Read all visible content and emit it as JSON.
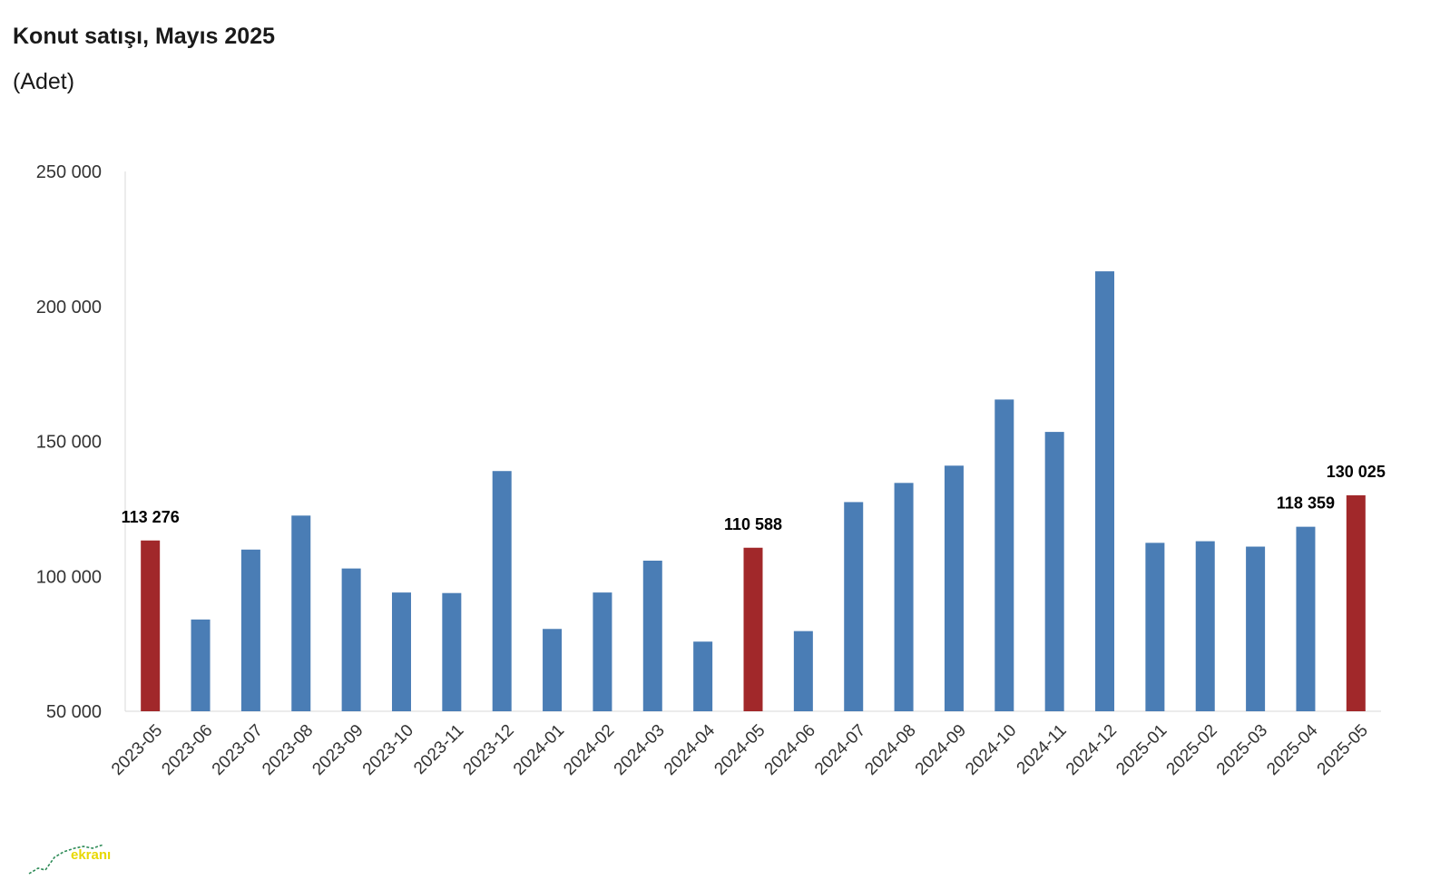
{
  "title": "Konut satışı, Mayıs 2025",
  "subtitle": "(Adet)",
  "logo_text": "ekranı",
  "colors": {
    "regular": "#4a7db5",
    "highlight": "#a1282a",
    "axis": "#d9d9d9",
    "label": "#000000",
    "tick": "#333333"
  },
  "chart_data": {
    "type": "bar",
    "title": "Konut satışı, Mayıs 2025",
    "ylabel": "(Adet)",
    "ylim": [
      50000,
      250000
    ],
    "yticks": [
      50000,
      100000,
      150000,
      200000,
      250000
    ],
    "ytick_labels": [
      "50 000",
      "100 000",
      "150 000",
      "200 000",
      "250 000"
    ],
    "grid": false,
    "categories": [
      "2023-05",
      "2023-06",
      "2023-07",
      "2023-08",
      "2023-09",
      "2023-10",
      "2023-11",
      "2023-12",
      "2024-01",
      "2024-02",
      "2024-03",
      "2024-04",
      "2024-05",
      "2024-06",
      "2024-07",
      "2024-08",
      "2024-09",
      "2024-10",
      "2024-11",
      "2024-12",
      "2025-01",
      "2025-02",
      "2025-03",
      "2025-04",
      "2025-05"
    ],
    "values": [
      113276,
      84000,
      109900,
      122500,
      102900,
      94000,
      93800,
      139000,
      80500,
      94000,
      105800,
      75800,
      110588,
      79700,
      127500,
      134600,
      141000,
      165500,
      153500,
      213000,
      112400,
      113000,
      111000,
      118359,
      130025
    ],
    "highlighted": [
      "2023-05",
      "2024-05",
      "2025-05"
    ],
    "data_labels": [
      {
        "category": "2023-05",
        "text": "113 276"
      },
      {
        "category": "2024-05",
        "text": "110 588"
      },
      {
        "category": "2025-04",
        "text": "118 359"
      },
      {
        "category": "2025-05",
        "text": "130 025"
      }
    ]
  }
}
